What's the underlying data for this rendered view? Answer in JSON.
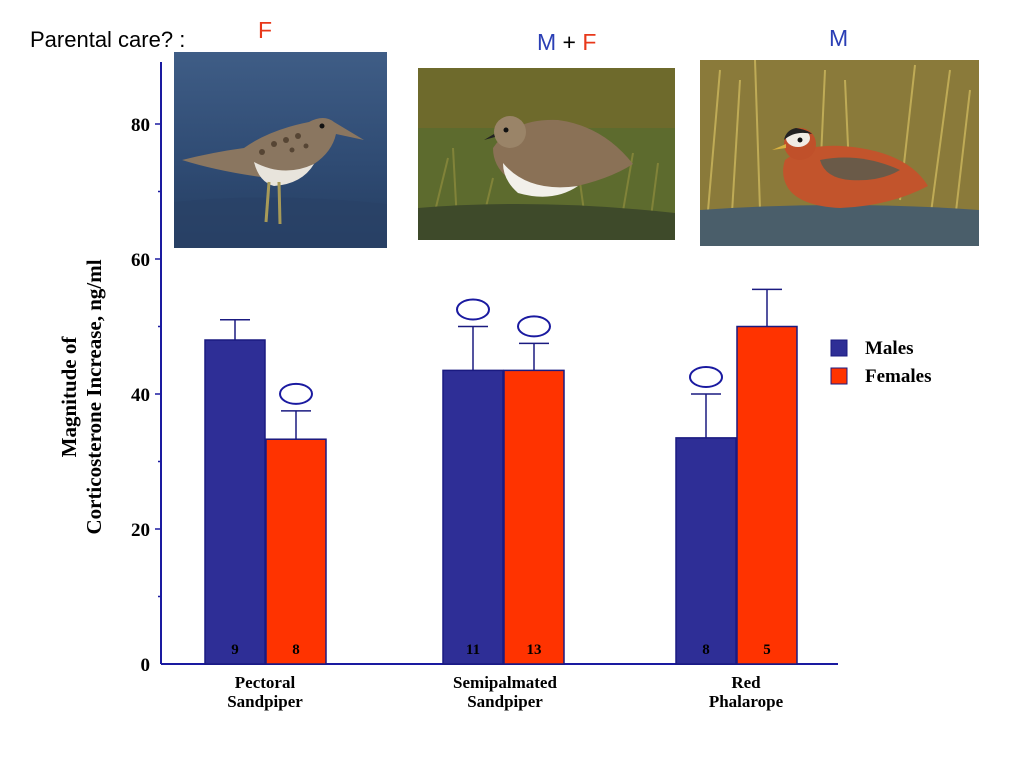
{
  "header": {
    "parental_care_label": "Parental care? :",
    "species_care": [
      {
        "parts": [
          {
            "text": "F",
            "color": "#e8381a"
          }
        ]
      },
      {
        "parts": [
          {
            "text": "M",
            "color": "#2b3fb5"
          },
          {
            "text": " + ",
            "color": "#000000"
          },
          {
            "text": "F",
            "color": "#e8381a"
          }
        ]
      },
      {
        "parts": [
          {
            "text": "M",
            "color": "#2b3fb5"
          }
        ]
      }
    ]
  },
  "photos": [
    {
      "icon": "pectoral-sandpiper-photo"
    },
    {
      "icon": "semipalmated-sandpiper-photo"
    },
    {
      "icon": "red-phalarope-photo"
    }
  ],
  "colors": {
    "males": "#2e2e96",
    "females": "#ff3300",
    "axis": "#1a1aa0",
    "text": "#000000"
  },
  "chart_data": {
    "type": "bar",
    "ylabel_line1": "Magnitude of",
    "ylabel_line2": "Corticosterone Increase, ng/ml",
    "ylim": [
      0,
      90
    ],
    "yticks": [
      0,
      20,
      40,
      60,
      80
    ],
    "categories": [
      {
        "line1": "Pectoral",
        "line2": "Sandpiper"
      },
      {
        "line1": "Semipalmated",
        "line2": "Sandpiper"
      },
      {
        "line1": "Red",
        "line2": "Phalarope"
      }
    ],
    "series": [
      {
        "name": "Males",
        "values": [
          48,
          43.5,
          33.5
        ],
        "error_upper": [
          51,
          50,
          40
        ],
        "n": [
          "9",
          "11",
          "8"
        ],
        "circle_marker": [
          false,
          true,
          true
        ]
      },
      {
        "name": "Females",
        "values": [
          33.3,
          43.5,
          50
        ],
        "error_upper": [
          37.5,
          47.5,
          55.5
        ],
        "n": [
          "8",
          "13",
          "5"
        ],
        "circle_marker": [
          true,
          true,
          false
        ]
      }
    ],
    "legend_position": "right",
    "grid": false
  }
}
